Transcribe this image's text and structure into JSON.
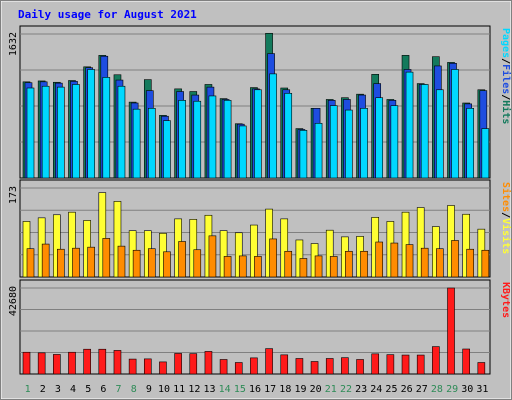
{
  "chart_data": {
    "type": "bar",
    "title": "Daily usage for August 2021",
    "categories": [
      "1",
      "2",
      "3",
      "4",
      "5",
      "6",
      "7",
      "8",
      "9",
      "10",
      "11",
      "12",
      "13",
      "14",
      "15",
      "16",
      "17",
      "18",
      "19",
      "20",
      "21",
      "22",
      "23",
      "24",
      "25",
      "26",
      "27",
      "28",
      "29",
      "30",
      "31"
    ],
    "weekend_days": [
      "1",
      "7",
      "8",
      "14",
      "15",
      "21",
      "22",
      "28",
      "29"
    ],
    "colors": {
      "background": "#c0c0c0",
      "title": "#0000ff",
      "hits": "#137a5c",
      "files": "#1e4de0",
      "pages": "#00d8ff",
      "visits": "#ffff33",
      "sites": "#ff8c00",
      "kbytes": "#ff1a1a",
      "weekday_label": "#008000",
      "weekend_label": "#2e8b57"
    },
    "panels": [
      {
        "id": "hits-files-pages",
        "ymax": 1632,
        "ymax_label": "1632",
        "legend": [
          "Pages",
          "/",
          "Files",
          "/",
          "Hits"
        ],
        "series": [
          {
            "name": "Hits",
            "values": [
              1090,
              1100,
              1085,
              1105,
              1260,
              1390,
              1170,
              860,
              1115,
              710,
              1010,
              980,
              1060,
              900,
              615,
              1025,
              1640,
              1020,
              560,
              790,
              890,
              910,
              950,
              1175,
              890,
              1390,
              1070,
              1375,
              1310,
              850,
              1000
            ]
          },
          {
            "name": "Files",
            "values": [
              1080,
              1090,
              1075,
              1095,
              1250,
              1380,
              1110,
              850,
              990,
              700,
              980,
              940,
              1030,
              890,
              610,
              1010,
              1410,
              1000,
              550,
              790,
              880,
              890,
              940,
              1070,
              880,
              1230,
              1060,
              1270,
              1300,
              840,
              990
            ]
          },
          {
            "name": "Pages",
            "values": [
              1020,
              1040,
              1030,
              1060,
              1230,
              1140,
              1040,
              780,
              790,
              650,
              880,
              870,
              930,
              880,
              590,
              1000,
              1180,
              960,
              540,
              620,
              820,
              770,
              790,
              910,
              820,
              1200,
              1060,
              1000,
              1230,
              790,
              560
            ]
          }
        ]
      },
      {
        "id": "visits-sites",
        "ymax": 173,
        "ymax_label": "173",
        "legend": [
          "Sites",
          "/",
          "Visits"
        ],
        "series": [
          {
            "name": "Visits",
            "values": [
              108,
              115,
              121,
              126,
              110,
              164,
              147,
              90,
              90,
              85,
              113,
              112,
              120,
              90,
              86,
              101,
              132,
              113,
              72,
              65,
              91,
              78,
              79,
              116,
              108,
              126,
              135,
              98,
              139,
              122,
              93
            ]
          },
          {
            "name": "Sites",
            "values": [
              55,
              64,
              54,
              56,
              58,
              75,
              60,
              52,
              55,
              49,
              69,
              53,
              80,
              40,
              41,
              40,
              74,
              50,
              36,
              41,
              40,
              50,
              50,
              68,
              66,
              63,
              56,
              55,
              71,
              54,
              52
            ]
          }
        ]
      },
      {
        "id": "kbytes",
        "ymax": 42680,
        "ymax_label": "42680",
        "legend": [
          "KBytes"
        ],
        "series": [
          {
            "name": "KBytes",
            "values": [
              10800,
              10500,
              9700,
              10800,
              12300,
              12300,
              11700,
              7400,
              7500,
              6000,
              10200,
              10100,
              11200,
              7200,
              5700,
              8000,
              12600,
              9500,
              7700,
              6200,
              7700,
              8100,
              7200,
              10000,
              9600,
              9400,
              9400,
              13600,
              42680,
              12400,
              5700
            ]
          }
        ]
      }
    ]
  }
}
